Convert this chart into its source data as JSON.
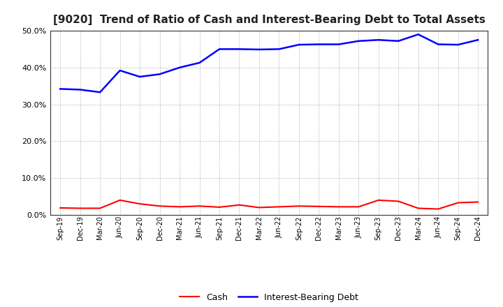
{
  "title": "[9020]  Trend of Ratio of Cash and Interest-Bearing Debt to Total Assets",
  "x_labels": [
    "Sep-19",
    "Dec-19",
    "Mar-20",
    "Jun-20",
    "Sep-20",
    "Dec-20",
    "Mar-21",
    "Jun-21",
    "Sep-21",
    "Dec-21",
    "Mar-22",
    "Jun-22",
    "Sep-22",
    "Dec-22",
    "Mar-23",
    "Jun-23",
    "Sep-23",
    "Dec-23",
    "Mar-24",
    "Jun-24",
    "Sep-24",
    "Dec-24"
  ],
  "cash": [
    0.019,
    0.018,
    0.018,
    0.04,
    0.03,
    0.024,
    0.022,
    0.024,
    0.021,
    0.027,
    0.02,
    0.022,
    0.024,
    0.023,
    0.022,
    0.022,
    0.04,
    0.037,
    0.018,
    0.016,
    0.033,
    0.035
  ],
  "ibd": [
    0.342,
    0.34,
    0.333,
    0.392,
    0.375,
    0.382,
    0.4,
    0.413,
    0.45,
    0.45,
    0.449,
    0.45,
    0.462,
    0.463,
    0.463,
    0.472,
    0.475,
    0.472,
    0.49,
    0.463,
    0.462,
    0.475
  ],
  "cash_color": "#ff0000",
  "ibd_color": "#0000ff",
  "ylim": [
    0.0,
    0.5
  ],
  "yticks": [
    0.0,
    0.1,
    0.2,
    0.3,
    0.4,
    0.5
  ],
  "background_color": "#ffffff",
  "grid_color": "#999999",
  "legend_labels": [
    "Cash",
    "Interest-Bearing Debt"
  ],
  "title_fontsize": 11,
  "tick_fontsize": 8,
  "x_tick_fontsize": 7
}
